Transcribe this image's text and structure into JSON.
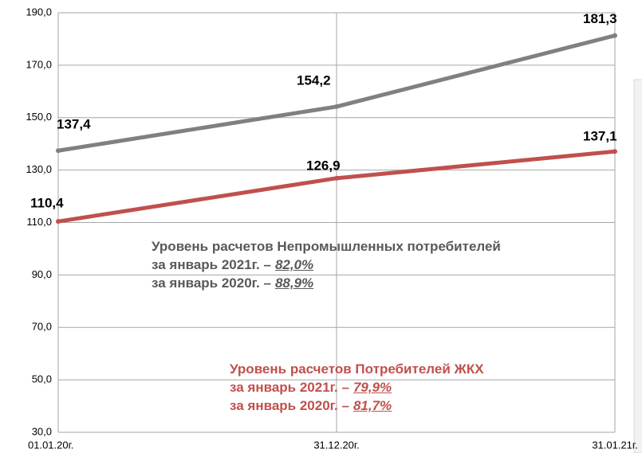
{
  "chart_data": {
    "type": "line",
    "categories": [
      "01.01.20г.",
      "31.12.20г.",
      "31.01.21г."
    ],
    "series": [
      {
        "color": "#808080",
        "label_color": "#595959",
        "values": [
          137.4,
          154.2,
          181.3
        ],
        "value_labels": [
          "137,4",
          "154,2",
          "181,3"
        ]
      },
      {
        "color": "#c0504d",
        "label_color": "#a33b38",
        "values": [
          110.4,
          126.9,
          137.1
        ],
        "value_labels": [
          "110,4",
          "126,9",
          "137,1"
        ]
      }
    ],
    "ylim": [
      30,
      190
    ],
    "yticks": [
      {
        "value": 30,
        "label": "30,0"
      },
      {
        "value": 50,
        "label": "50,0"
      },
      {
        "value": 70,
        "label": "70,0"
      },
      {
        "value": 90,
        "label": "90,0"
      },
      {
        "value": 110,
        "label": "110,0"
      },
      {
        "value": 130,
        "label": "130,0"
      },
      {
        "value": 150,
        "label": "150,0"
      },
      {
        "value": 170,
        "label": "170,0"
      },
      {
        "value": 190,
        "label": "190,0"
      }
    ],
    "grid": true,
    "annotations": [
      {
        "color": "#595959",
        "title": "Уровень расчетов Непромышленных потребителей",
        "rows": [
          {
            "label": "за январь 2021г. –",
            "value": "82,0%"
          },
          {
            "label": "за январь 2020г. –",
            "value": "88,9%"
          }
        ]
      },
      {
        "color": "#c0504d",
        "title": "Уровень расчетов Потребителей ЖКХ",
        "rows": [
          {
            "label": "за январь 2021г. –",
            "value": "79,9%"
          },
          {
            "label": "за январь 2020г. –",
            "value": "81,7%"
          }
        ]
      }
    ]
  }
}
